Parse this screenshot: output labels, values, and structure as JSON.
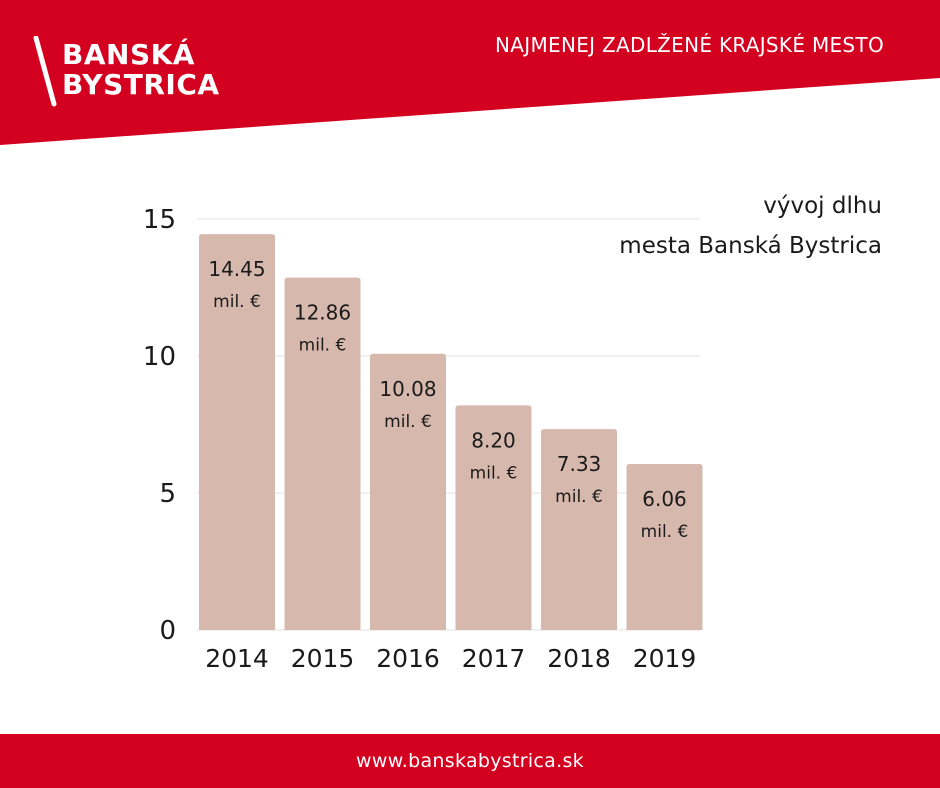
{
  "header": {
    "logo_line1": "BANSKÁ",
    "logo_line2": "BYSTRICA",
    "tagline": "NAJMENEJ ZADLŽENÉ KRAJSKÉ MESTO",
    "brand_color": "#d4001f"
  },
  "chart_data": {
    "type": "bar",
    "title_line1": "vývoj dlhu",
    "title_line2": "mesta Banská Bystrica",
    "categories": [
      "2014",
      "2015",
      "2016",
      "2017",
      "2018",
      "2019"
    ],
    "values": [
      14.45,
      12.86,
      10.08,
      8.2,
      7.33,
      6.06
    ],
    "value_labels": [
      "14.45",
      "12.86",
      "10.08",
      "8.20",
      "7.33",
      "6.06"
    ],
    "unit_label": "mil. €",
    "yticks": [
      "0",
      "5",
      "10",
      "15"
    ],
    "ytick_values": [
      0,
      5,
      10,
      15
    ],
    "ylim": [
      0,
      15
    ],
    "grid": true,
    "bar_color": "#d6b8ad"
  },
  "footer": {
    "website": "www.banskabystrica.sk"
  }
}
